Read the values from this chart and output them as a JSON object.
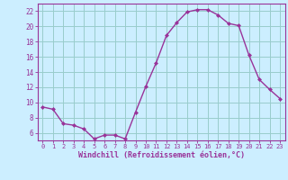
{
  "x": [
    0,
    1,
    2,
    3,
    4,
    5,
    6,
    7,
    8,
    9,
    10,
    11,
    12,
    13,
    14,
    15,
    16,
    17,
    18,
    19,
    20,
    21,
    22,
    23
  ],
  "y": [
    9.4,
    9.1,
    7.2,
    7.0,
    6.5,
    5.2,
    5.7,
    5.7,
    5.2,
    8.7,
    12.1,
    15.2,
    18.8,
    20.5,
    21.9,
    22.2,
    22.2,
    21.5,
    20.4,
    20.1,
    16.2,
    13.0,
    11.7,
    10.5
  ],
  "line_color": "#993399",
  "marker": "D",
  "marker_size": 2,
  "bg_color": "#cceeff",
  "grid_color": "#99cccc",
  "xlabel": "Windchill (Refroidissement éolien,°C)",
  "xlabel_color": "#993399",
  "tick_color": "#993399",
  "axis_color": "#993399",
  "ylim": [
    5.0,
    23.0
  ],
  "xlim": [
    -0.5,
    23.5
  ],
  "yticks": [
    6,
    8,
    10,
    12,
    14,
    16,
    18,
    20,
    22
  ],
  "xticks": [
    0,
    1,
    2,
    3,
    4,
    5,
    6,
    7,
    8,
    9,
    10,
    11,
    12,
    13,
    14,
    15,
    16,
    17,
    18,
    19,
    20,
    21,
    22,
    23
  ],
  "xlabel_fontsize": 6.0,
  "xtick_fontsize": 5.0,
  "ytick_fontsize": 5.5
}
